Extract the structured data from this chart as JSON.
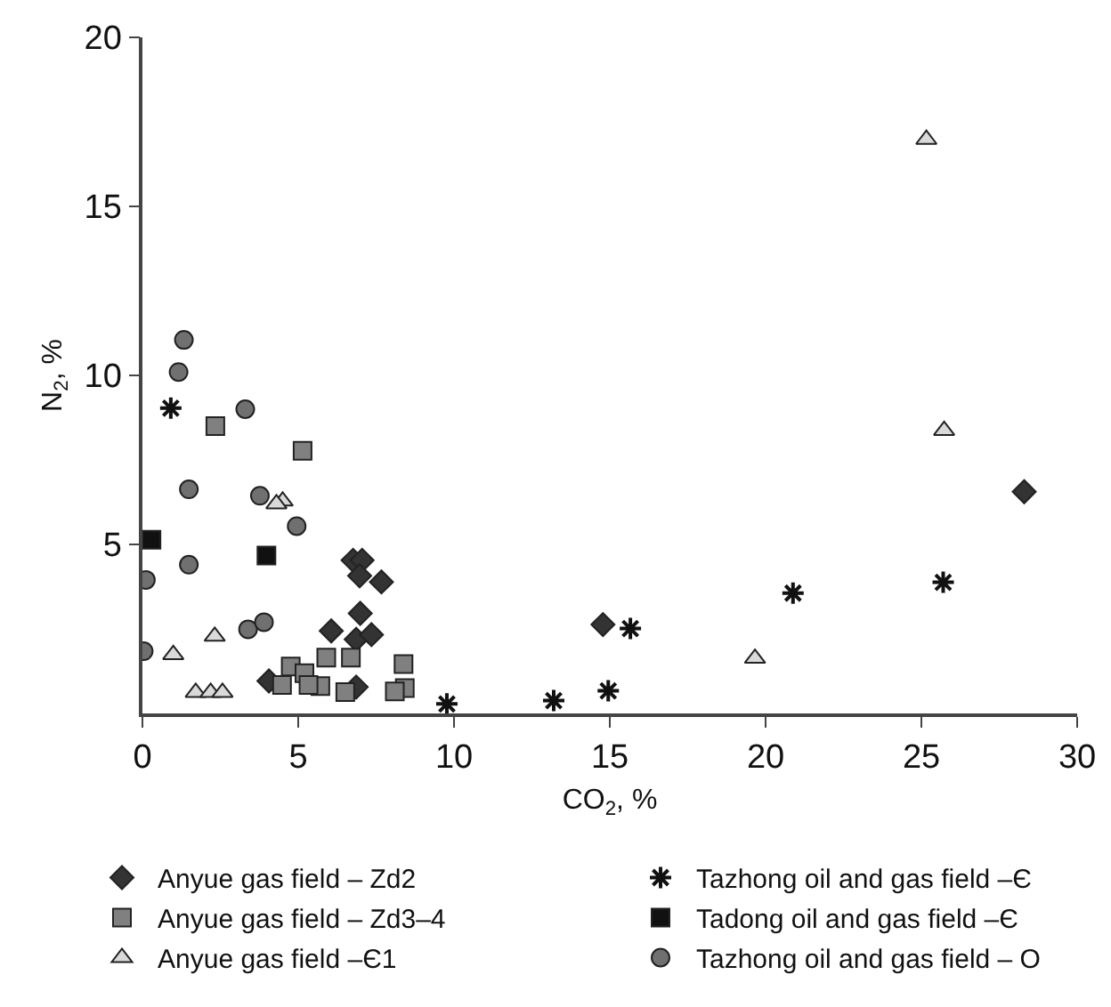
{
  "chart_data": {
    "type": "scatter",
    "xlabel": "CO$_{2}$, %",
    "ylabel": "N$_{2}$, %",
    "xlim": [
      0,
      30
    ],
    "xticks": [
      0,
      5,
      10,
      15,
      20,
      25,
      30
    ],
    "ylim": [
      0,
      20
    ],
    "yticks": [
      5,
      10,
      15,
      20
    ],
    "legend": "bottom",
    "series": [
      {
        "name": "Anyue gas field – Zd2",
        "color": "#333333",
        "marker": "diamond",
        "x": [
          14.78,
          28.3,
          6.76,
          7.05,
          6.97,
          7.67,
          6.99,
          6.06,
          6.86,
          7.35,
          4.06,
          6.86
        ],
        "values": [
          2.63,
          6.56,
          4.53,
          4.53,
          4.07,
          3.89,
          2.96,
          2.44,
          2.19,
          2.33,
          0.96,
          0.78
        ]
      },
      {
        "name": "Tazhong oil and gas field –Є",
        "color": "#111111",
        "marker": "cross",
        "x": [
          0.91,
          9.77,
          13.2,
          14.95,
          15.66,
          20.88,
          25.7
        ],
        "values": [
          9.03,
          0.28,
          0.38,
          0.67,
          2.51,
          3.56,
          3.88
        ]
      },
      {
        "name": "Anyue gas field – Zd3–4",
        "color": "#808080",
        "marker": "square",
        "x": [
          2.34,
          5.14,
          5.9,
          6.69,
          8.38,
          4.76,
          5.2,
          4.48,
          5.71,
          6.51,
          8.42,
          8.1,
          5.33
        ],
        "values": [
          8.5,
          7.77,
          1.65,
          1.65,
          1.46,
          1.39,
          1.19,
          0.84,
          0.81,
          0.63,
          0.75,
          0.65,
          0.84
        ]
      },
      {
        "name": "Tadong oil and gas field –Є",
        "color": "#111111",
        "marker": "square",
        "x": [
          0.29,
          3.98
        ],
        "values": [
          5.14,
          4.67
        ]
      },
      {
        "name": "Anyue gas field –Є1",
        "color": "#d9d9d9",
        "marker": "triangle",
        "x": [
          0.99,
          2.32,
          4.5,
          4.3,
          1.71,
          2.19,
          2.57,
          19.66,
          25.16,
          25.73
        ],
        "values": [
          1.74,
          2.28,
          6.28,
          6.2,
          0.62,
          0.62,
          0.62,
          1.63,
          16.98,
          8.37
        ]
      },
      {
        "name": "Tazhong oil and gas field – O",
        "color": "#707070",
        "marker": "circle",
        "x": [
          1.16,
          1.33,
          3.3,
          1.49,
          3.77,
          4.95,
          0.11,
          1.49,
          3.39,
          3.9,
          0.04
        ],
        "values": [
          10.1,
          11.05,
          9.0,
          6.63,
          6.44,
          5.54,
          3.95,
          4.4,
          2.49,
          2.7,
          1.84
        ]
      }
    ]
  }
}
